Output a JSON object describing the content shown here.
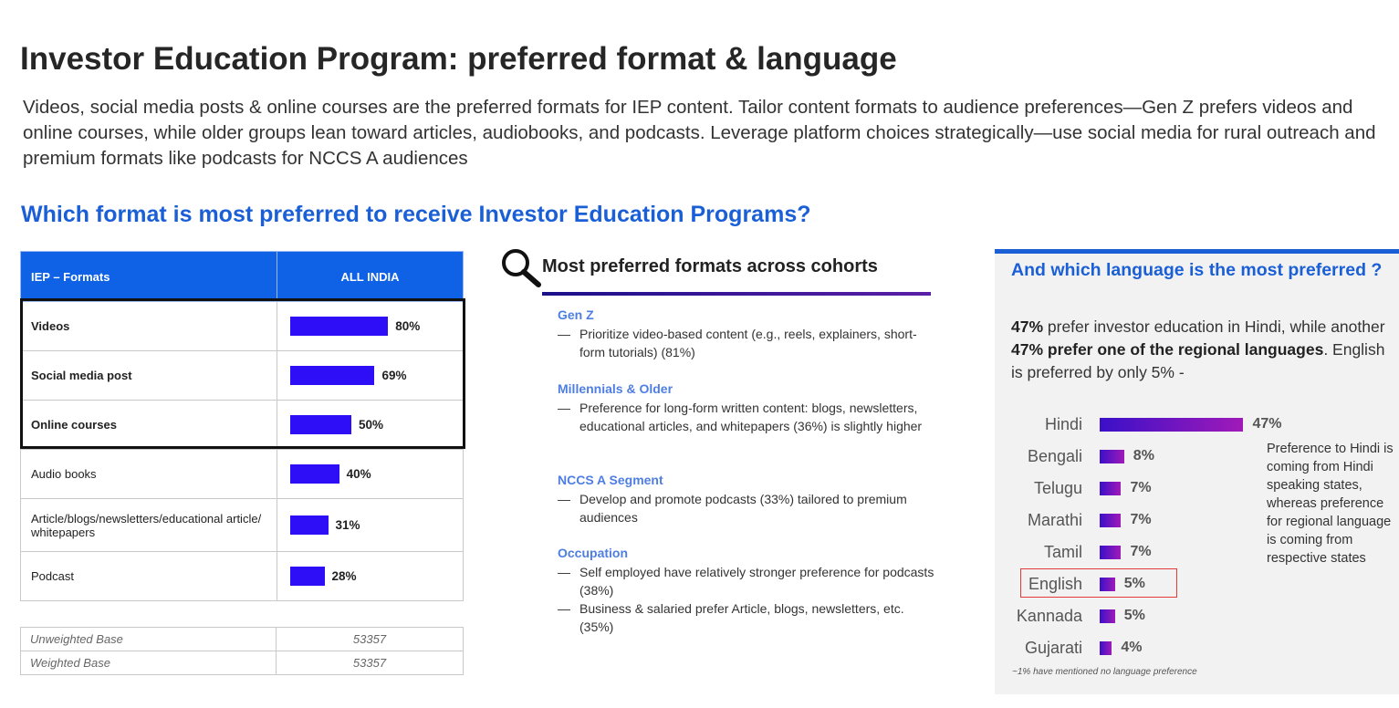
{
  "title": "Investor Education Program: preferred format & language",
  "subtitle": "Videos, social media posts & online courses are the preferred formats for IEP content. Tailor content formats to audience preferences—Gen Z prefers videos and online courses, while older groups lean toward articles, audiobooks, and podcasts. Leverage platform choices strategically—use social media for rural outreach and premium formats like podcasts for NCCS A audiences",
  "question_heading": "Which format is most preferred to receive Investor Education Programs?",
  "formats_table": {
    "header_format": "IEP – Formats",
    "header_all_india": "ALL INDIA",
    "bar_color": "#2d0ef7",
    "rows": [
      {
        "label": "Videos",
        "value": 80,
        "value_label": "80%",
        "highlighted": true
      },
      {
        "label": "Social media post",
        "value": 69,
        "value_label": "69%",
        "highlighted": true
      },
      {
        "label": "Online courses",
        "value": 50,
        "value_label": "50%",
        "highlighted": true
      },
      {
        "label": "Audio books",
        "value": 40,
        "value_label": "40%",
        "highlighted": false
      },
      {
        "label": "Article/blogs/newsletters/educational article/ whitepapers",
        "value": 31,
        "value_label": "31%",
        "highlighted": false
      },
      {
        "label": "Podcast",
        "value": 28,
        "value_label": "28%",
        "highlighted": false
      }
    ],
    "unweighted_base_label": "Unweighted Base",
    "unweighted_base_value": "53357",
    "weighted_base_label": "Weighted Base",
    "weighted_base_value": "53357"
  },
  "cohorts": {
    "title": "Most preferred formats across cohorts",
    "icon": "magnifier-icon",
    "items": [
      {
        "heading": "Gen Z",
        "points": [
          "Prioritize video-based content (e.g., reels, explainers, short-form tutorials) (81%)"
        ]
      },
      {
        "heading": "Millennials & Older",
        "points": [
          "Preference for long-form written content: blogs, newsletters, educational articles, and whitepapers (36%) is slightly higher"
        ]
      },
      {
        "heading": "NCCS A Segment",
        "points": [
          "Develop and promote podcasts (33%) tailored to premium audiences"
        ]
      },
      {
        "heading": "Occupation",
        "points": [
          "Self employed have relatively stronger preference for podcasts (38%)",
          "Business & salaried prefer Article, blogs, newsletters, etc. (35%)"
        ]
      }
    ]
  },
  "language": {
    "heading": "And which language is the most preferred ?",
    "summary_part1": "47%",
    "summary_part2": " prefer investor education in Hindi, while another ",
    "summary_part3": "47% prefer one of the regional languages",
    "summary_part4": ". English is preferred by only 5% -",
    "note": "Preference to Hindi is coming from Hindi speaking states, whereas preference for regional language is coming from respective states",
    "footnote": "~1% have mentioned no language preference",
    "highlight_color": "#e23a3a",
    "chart_data": {
      "type": "bar",
      "categories": [
        "Hindi",
        "Bengali",
        "Telugu",
        "Marathi",
        "Tamil",
        "English",
        "Kannada",
        "Gujarati"
      ],
      "values": [
        47,
        8,
        7,
        7,
        7,
        5,
        5,
        4
      ],
      "value_labels": [
        "47%",
        "8%",
        "7%",
        "7%",
        "7%",
        "5%",
        "5%",
        "4%"
      ],
      "orientation": "horizontal",
      "highlighted_category": "English"
    }
  }
}
